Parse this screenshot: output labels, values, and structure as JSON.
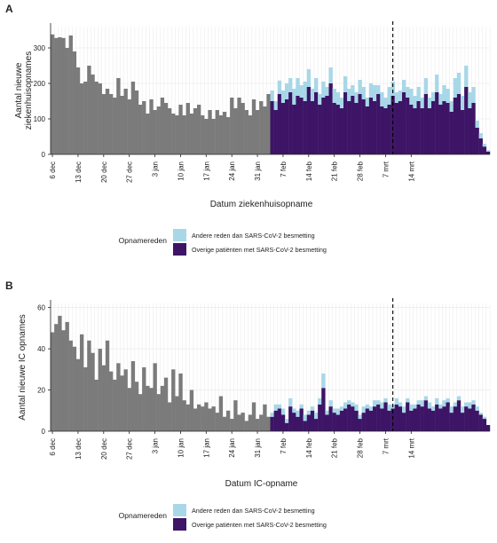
{
  "colors": {
    "grey": "#7b7b7b",
    "purple": "#3d1466",
    "lightblue": "#a8d8e8",
    "grid": "#e8e8e8",
    "axis": "#222222"
  },
  "chart_data": [
    {
      "panel_label": "A",
      "type": "bar",
      "stacked": true,
      "ylabel": "Aantal nieuwe ziekenhuisopnames",
      "ylabel_lines": [
        "Aantal nieuwe",
        "ziekenhuisopnames"
      ],
      "xlabel": "Datum ziekenhuisopname",
      "ylim": [
        0,
        360
      ],
      "yticks": [
        0,
        100,
        200,
        300
      ],
      "xtick_labels": [
        "6 dec",
        "13 dec",
        "20 dec",
        "27 dec",
        "3 jan",
        "10 jan",
        "17 jan",
        "24 jan",
        "31 jan",
        "7 feb",
        "14 feb",
        "21 feb",
        "28 feb",
        "7 mrt",
        "14 mrt"
      ],
      "grid": true,
      "vline_day": 93,
      "grey_values": [
        338,
        328,
        330,
        328,
        300,
        335,
        290,
        245,
        200,
        205,
        250,
        225,
        205,
        200,
        170,
        185,
        170,
        160,
        215,
        165,
        185,
        155,
        205,
        180,
        140,
        150,
        115,
        155,
        125,
        135,
        160,
        145,
        130,
        115,
        110,
        140,
        110,
        145,
        115,
        130,
        140,
        110,
        100,
        125,
        100,
        125,
        110,
        120,
        105,
        160,
        130,
        160,
        145,
        125,
        110,
        155,
        125,
        150,
        135,
        170
      ],
      "series": [
        {
          "name": "Overige patiënten met SARS-CoV-2 besmetting",
          "values": [
            150,
            125,
            170,
            145,
            155,
            175,
            140,
            165,
            160,
            150,
            190,
            150,
            175,
            140,
            160,
            165,
            200,
            145,
            140,
            130,
            175,
            150,
            165,
            145,
            170,
            155,
            135,
            160,
            150,
            170,
            135,
            130,
            140,
            165,
            145,
            150,
            175,
            160,
            140,
            130,
            150,
            130,
            170,
            130,
            150,
            175,
            140,
            150,
            145,
            120,
            160,
            170,
            125,
            190,
            130,
            145,
            75,
            45,
            22,
            8
          ]
        },
        {
          "name": "Andere reden dan SARS-CoV-2 besmetting",
          "values": [
            30,
            25,
            38,
            35,
            45,
            40,
            45,
            50,
            35,
            55,
            50,
            35,
            40,
            30,
            45,
            25,
            45,
            40,
            35,
            30,
            45,
            35,
            30,
            30,
            40,
            35,
            25,
            40,
            45,
            25,
            40,
            30,
            50,
            40,
            30,
            30,
            35,
            30,
            45,
            35,
            40,
            30,
            45,
            30,
            25,
            50,
            30,
            45,
            40,
            30,
            55,
            60,
            40,
            60,
            45,
            45,
            20,
            15,
            8,
            4
          ]
        }
      ],
      "legend": {
        "title": "Opnamereden",
        "items": [
          "Andere reden dan SARS-CoV-2 besmetting",
          "Overige patiënten met SARS-CoV-2 besmetting"
        ]
      }
    },
    {
      "panel_label": "B",
      "type": "bar",
      "stacked": true,
      "ylabel": "Aantal nieuwe IC opnames",
      "xlabel": "Datum IC-opname",
      "ylim": [
        0,
        62
      ],
      "yticks": [
        0,
        20,
        40,
        60
      ],
      "xtick_labels": [
        "6 dec",
        "13 dec",
        "20 dec",
        "27 dec",
        "3 jan",
        "10 jan",
        "17 jan",
        "24 jan",
        "31 jan",
        "7 feb",
        "14 feb",
        "21 feb",
        "28 feb",
        "7 mrt",
        "14 mrt"
      ],
      "grid": true,
      "vline_day": 93,
      "grey_values": [
        48,
        52,
        56,
        49,
        53,
        44,
        41,
        35,
        47,
        31,
        44,
        38,
        25,
        40,
        32,
        44,
        29,
        25,
        33,
        27,
        30,
        21,
        34,
        24,
        18,
        31,
        22,
        21,
        33,
        18,
        22,
        26,
        14,
        30,
        17,
        28,
        15,
        13,
        20,
        11,
        13,
        12,
        14,
        11,
        12,
        9,
        17,
        7,
        10,
        6,
        15,
        8,
        9,
        5,
        8,
        14,
        6,
        8,
        13,
        7
      ],
      "series": [
        {
          "name": "Overige patiënten met SARS-CoV-2 besmetting",
          "values": [
            7,
            10,
            11,
            8,
            4,
            12,
            9,
            7,
            11,
            5,
            8,
            10,
            6,
            13,
            21,
            8,
            12,
            9,
            8,
            10,
            11,
            13,
            12,
            10,
            6,
            9,
            11,
            10,
            12,
            13,
            11,
            14,
            10,
            11,
            13,
            12,
            9,
            14,
            10,
            11,
            13,
            12,
            15,
            11,
            10,
            13,
            11,
            12,
            14,
            9,
            12,
            15,
            9,
            12,
            11,
            13,
            10,
            8,
            6,
            3
          ]
        },
        {
          "name": "Andere reden dan SARS-CoV-2 besmetting",
          "values": [
            2,
            3,
            2,
            3,
            2,
            4,
            2,
            3,
            2,
            3,
            2,
            2,
            3,
            3,
            7,
            2,
            3,
            2,
            3,
            2,
            3,
            2,
            2,
            3,
            2,
            3,
            2,
            2,
            3,
            2,
            3,
            2,
            3,
            2,
            3,
            2,
            3,
            2,
            3,
            2,
            2,
            3,
            2,
            3,
            2,
            3,
            2,
            3,
            2,
            3,
            2,
            2,
            3,
            2,
            3,
            2,
            2,
            1,
            1,
            0
          ]
        }
      ],
      "legend": {
        "title": "Opnamereden",
        "items": [
          "Andere reden dan SARS-CoV-2 besmetting",
          "Overige patiënten met SARS-CoV-2 besmetting"
        ]
      }
    }
  ]
}
